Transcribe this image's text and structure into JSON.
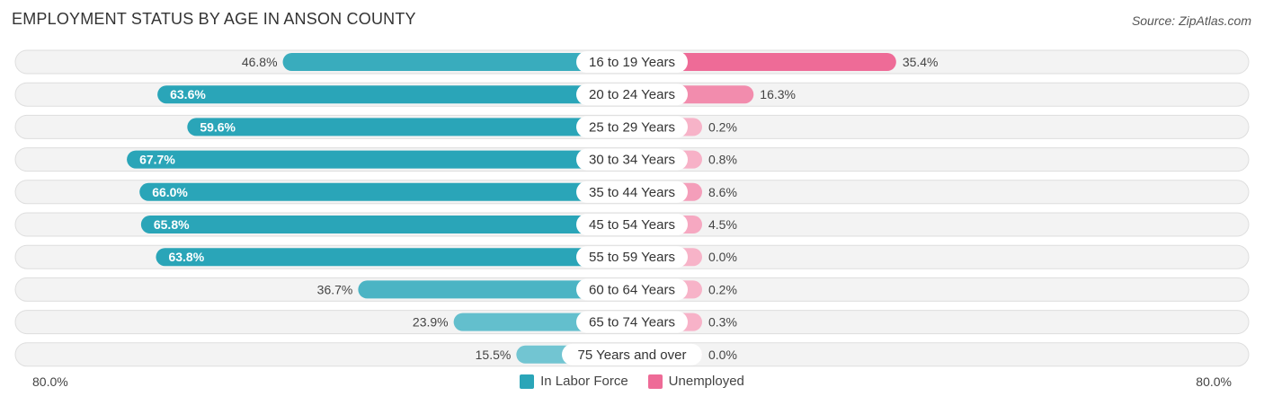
{
  "title": "EMPLOYMENT STATUS BY AGE IN ANSON COUNTY",
  "source": "Source: ZipAtlas.com",
  "axis": {
    "left_label": "80.0%",
    "right_label": "80.0%"
  },
  "legend": [
    {
      "label": "In Labor Force",
      "color": "#2aa5b8"
    },
    {
      "label": "Unemployed",
      "color": "#ee6b97"
    }
  ],
  "chart_data": {
    "type": "bar",
    "orientation": "diverging-horizontal",
    "title": "EMPLOYMENT STATUS BY AGE IN ANSON COUNTY",
    "categories": [
      "16 to 19 Years",
      "20 to 24 Years",
      "25 to 29 Years",
      "30 to 34 Years",
      "35 to 44 Years",
      "45 to 54 Years",
      "55 to 59 Years",
      "60 to 64 Years",
      "65 to 74 Years",
      "75 Years and over"
    ],
    "series": [
      {
        "name": "In Labor Force",
        "side": "left",
        "values": [
          46.8,
          63.6,
          59.6,
          67.7,
          66.0,
          65.8,
          63.8,
          36.7,
          23.9,
          15.5
        ],
        "labels": [
          "46.8%",
          "63.6%",
          "59.6%",
          "67.7%",
          "66.0%",
          "65.8%",
          "63.8%",
          "36.7%",
          "23.9%",
          "15.5%"
        ]
      },
      {
        "name": "Unemployed",
        "side": "right",
        "values": [
          35.4,
          16.3,
          0.2,
          0.8,
          8.6,
          4.5,
          0.0,
          0.2,
          0.3,
          0.0
        ],
        "labels": [
          "35.4%",
          "16.3%",
          "0.2%",
          "0.8%",
          "8.6%",
          "4.5%",
          "0.0%",
          "0.2%",
          "0.3%",
          "0.0%"
        ]
      }
    ],
    "xlim": [
      -80,
      80
    ],
    "xlabel": "",
    "ylabel": ""
  }
}
